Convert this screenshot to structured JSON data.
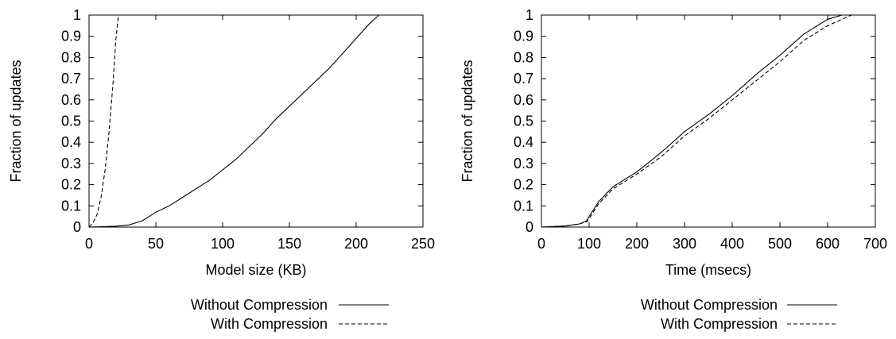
{
  "chart_data": [
    {
      "type": "line",
      "xlabel": "Model size (KB)",
      "ylabel": "Fraction of updates",
      "xlim": [
        0,
        250
      ],
      "ylim": [
        0,
        1
      ],
      "xticks": [
        "0",
        "50",
        "100",
        "150",
        "200",
        "250"
      ],
      "yticks": [
        "0",
        "0.1",
        "0.2",
        "0.3",
        "0.4",
        "0.5",
        "0.6",
        "0.7",
        "0.8",
        "0.9",
        "1"
      ],
      "legend_position": "below",
      "series": [
        {
          "name": "Without Compression",
          "style": "solid",
          "x": [
            0,
            10,
            20,
            30,
            40,
            50,
            60,
            70,
            80,
            90,
            100,
            110,
            120,
            130,
            140,
            150,
            160,
            170,
            180,
            190,
            200,
            210,
            217
          ],
          "y": [
            0,
            0.002,
            0.004,
            0.01,
            0.03,
            0.07,
            0.1,
            0.14,
            0.18,
            0.22,
            0.27,
            0.32,
            0.38,
            0.44,
            0.51,
            0.57,
            0.63,
            0.69,
            0.75,
            0.82,
            0.89,
            0.96,
            1.0
          ]
        },
        {
          "name": "With Compression",
          "style": "dashed",
          "x": [
            0,
            3,
            6,
            9,
            12,
            15,
            18,
            20,
            22
          ],
          "y": [
            0,
            0.02,
            0.06,
            0.14,
            0.27,
            0.45,
            0.68,
            0.88,
            1.0
          ]
        }
      ]
    },
    {
      "type": "line",
      "xlabel": "Time (msecs)",
      "ylabel": "Fraction of updates",
      "xlim": [
        0,
        700
      ],
      "ylim": [
        0,
        1
      ],
      "xticks": [
        "0",
        "100",
        "200",
        "300",
        "400",
        "500",
        "600",
        "700"
      ],
      "yticks": [
        "0",
        "0.1",
        "0.2",
        "0.3",
        "0.4",
        "0.5",
        "0.6",
        "0.7",
        "0.8",
        "0.9",
        "1"
      ],
      "legend_position": "below",
      "series": [
        {
          "name": "Without Compression",
          "style": "solid",
          "x": [
            0,
            50,
            80,
            95,
            100,
            120,
            150,
            200,
            250,
            300,
            350,
            400,
            450,
            500,
            550,
            600,
            630,
            650
          ],
          "y": [
            0,
            0.005,
            0.015,
            0.03,
            0.05,
            0.12,
            0.19,
            0.26,
            0.35,
            0.45,
            0.53,
            0.62,
            0.72,
            0.81,
            0.91,
            0.98,
            1.0,
            1.0
          ]
        },
        {
          "name": "With Compression",
          "style": "dashed",
          "x": [
            0,
            50,
            80,
            95,
            100,
            120,
            150,
            200,
            250,
            300,
            350,
            400,
            450,
            500,
            550,
            600,
            630,
            650
          ],
          "y": [
            0,
            0.005,
            0.015,
            0.025,
            0.04,
            0.11,
            0.18,
            0.25,
            0.33,
            0.43,
            0.51,
            0.6,
            0.69,
            0.78,
            0.88,
            0.95,
            0.98,
            1.0
          ]
        }
      ]
    }
  ]
}
